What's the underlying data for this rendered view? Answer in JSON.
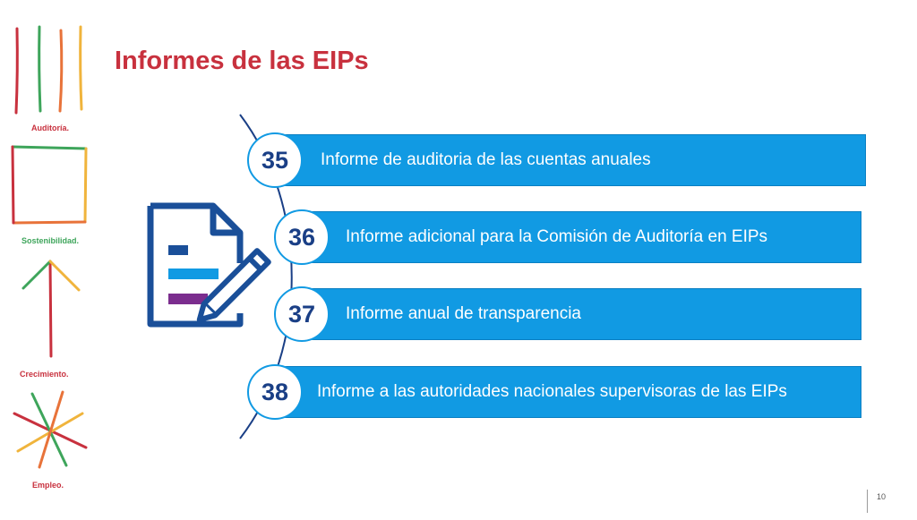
{
  "slide": {
    "title": "Informes de las EIPs",
    "page_number": "10"
  },
  "brand_rail": {
    "labels": [
      {
        "text": "Auditoría.",
        "color": "#c8313e"
      },
      {
        "text": "Sostenibilidad.",
        "color": "#3ea55b"
      },
      {
        "text": "Crecimiento.",
        "color": "#c8313e"
      },
      {
        "text": "Empleo.",
        "color": "#c8313e"
      }
    ]
  },
  "reports": [
    {
      "number": "35",
      "label": "Informe de auditoria de las cuentas anuales"
    },
    {
      "number": "36",
      "label": "Informe adicional para la Comisión de Auditoría en EIPs"
    },
    {
      "number": "37",
      "label": "Informe anual de transparencia"
    },
    {
      "number": "38",
      "label": "Informe a las autoridades nacionales supervisoras de las EIPs"
    }
  ],
  "colors": {
    "title": "#c8313e",
    "bar": "#119ae3",
    "badge_text": "#1a3f86",
    "icon_outline": "#1a4f99",
    "icon_line_1": "#1a4f99",
    "icon_line_2": "#119ae3",
    "icon_line_3": "#7b2d8e"
  },
  "icons": {
    "document": "document-with-pencil-icon"
  }
}
